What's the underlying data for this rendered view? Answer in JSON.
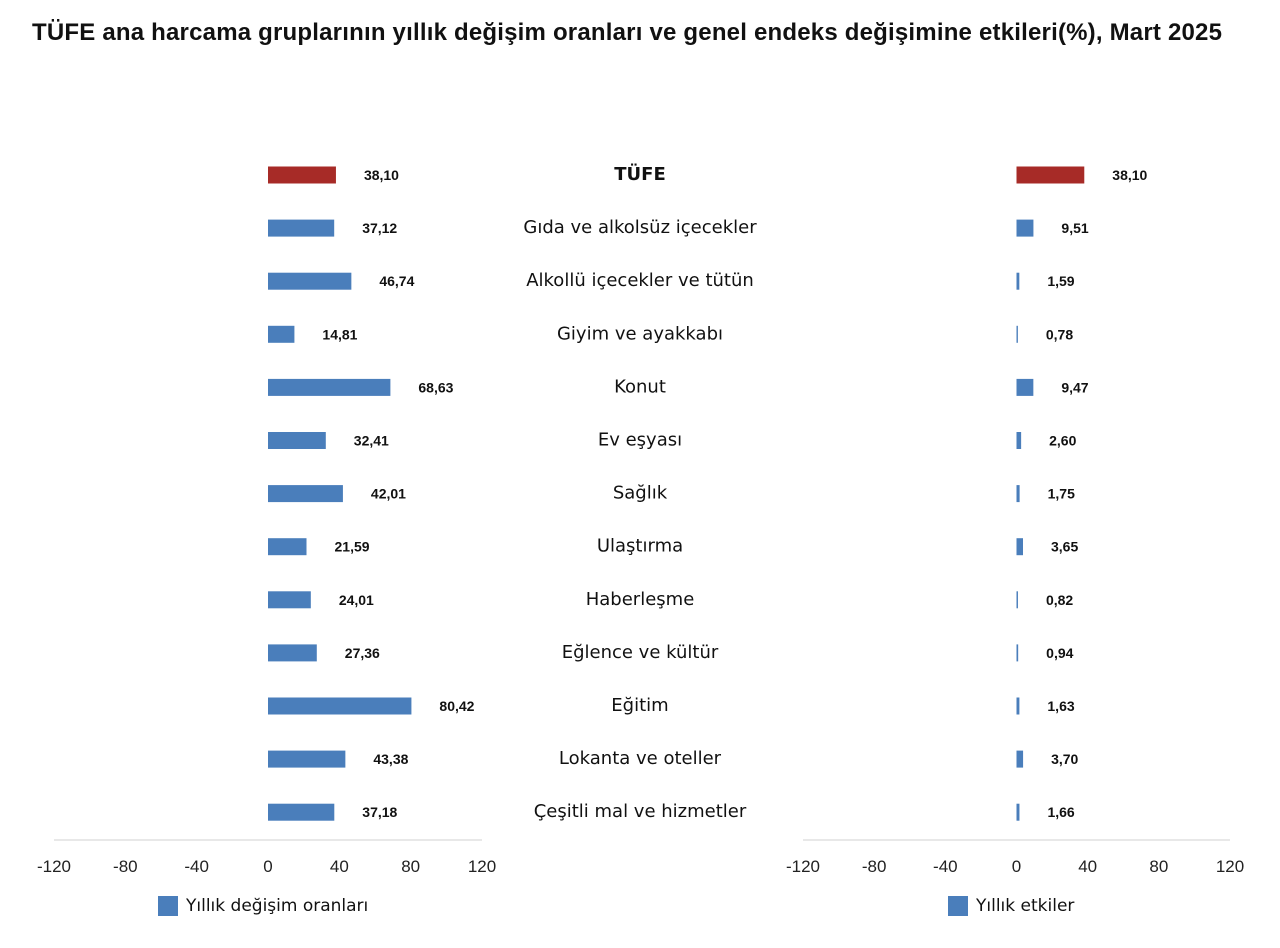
{
  "title": "TÜFE ana harcama gruplarının yıllık değişim oranları ve genel endeks değişimine etkileri(%), Mart 2025",
  "colors": {
    "highlight": "#a72b27",
    "bar": "#4a7ebb",
    "axis": "#d0d0d0"
  },
  "chart_data": [
    {
      "type": "bar",
      "orientation": "horizontal",
      "categories": [
        "TÜFE",
        "Gıda ve alkolsüz içecekler",
        "Alkollü içecekler ve tütün",
        "Giyim ve ayakkabı",
        "Konut",
        "Ev eşyası",
        "Sağlık",
        "Ulaştırma",
        "Haberleşme",
        "Eğlence ve kültür",
        "Eğitim",
        "Lokanta ve oteller",
        "Çeşitli mal ve hizmetler"
      ],
      "series": [
        {
          "name": "Yıllık değişim oranları",
          "values": [
            38.1,
            37.12,
            46.74,
            14.81,
            68.63,
            32.41,
            42.01,
            21.59,
            24.01,
            27.36,
            80.42,
            43.38,
            37.18
          ]
        }
      ],
      "value_labels": [
        "38,10",
        "37,12",
        "46,74",
        "14,81",
        "68,63",
        "32,41",
        "42,01",
        "21,59",
        "24,01",
        "27,36",
        "80,42",
        "43,38",
        "37,18"
      ],
      "xlim": [
        -120,
        120
      ],
      "xticks": [
        "-120",
        "-80",
        "-40",
        "0",
        "40",
        "80",
        "120"
      ],
      "highlight_index": 0,
      "legend": "bottom-left",
      "grid": false
    },
    {
      "type": "bar",
      "orientation": "horizontal",
      "categories": [
        "TÜFE",
        "Gıda ve alkolsüz içecekler",
        "Alkollü içecekler ve tütün",
        "Giyim ve ayakkabı",
        "Konut",
        "Ev eşyası",
        "Sağlık",
        "Ulaştırma",
        "Haberleşme",
        "Eğlence ve kültür",
        "Eğitim",
        "Lokanta ve oteller",
        "Çeşitli mal ve hizmetler"
      ],
      "series": [
        {
          "name": "Yıllık etkiler",
          "values": [
            38.1,
            9.51,
            1.59,
            0.78,
            9.47,
            2.6,
            1.75,
            3.65,
            0.82,
            0.94,
            1.63,
            3.7,
            1.66
          ]
        }
      ],
      "value_labels": [
        "38,10",
        "9,51",
        "1,59",
        "0,78",
        "9,47",
        "2,60",
        "1,75",
        "3,65",
        "0,82",
        "0,94",
        "1,63",
        "3,70",
        "1,66"
      ],
      "xlim": [
        -120,
        120
      ],
      "xticks": [
        "-120",
        "-80",
        "-40",
        "0",
        "40",
        "80",
        "120"
      ],
      "highlight_index": 0,
      "legend": "bottom-center",
      "grid": false
    }
  ]
}
